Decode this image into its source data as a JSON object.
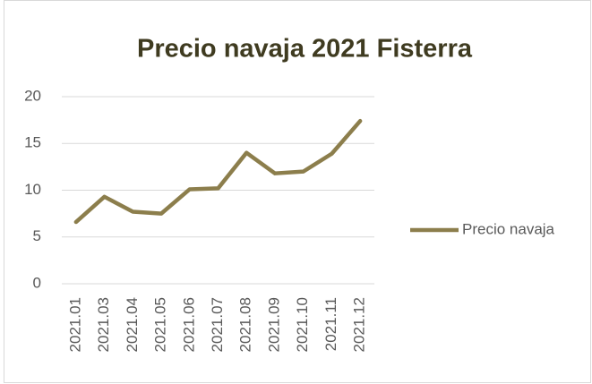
{
  "chart_data": {
    "type": "line",
    "title": "Precio navaja 2021 Fisterra",
    "categories": [
      "2021.01",
      "2021.03",
      "2021.04",
      "2021.05",
      "2021.06",
      "2021.07",
      "2021.08",
      "2021.09",
      "2021.10",
      "2021.11",
      "2021.12"
    ],
    "series": [
      {
        "name": "Precio navaja",
        "color": "#8c7e4c",
        "values": [
          6.6,
          9.3,
          7.7,
          7.5,
          10.1,
          10.2,
          14.0,
          11.8,
          12.0,
          13.9,
          17.4
        ]
      }
    ],
    "ylim": [
      0,
      20
    ],
    "yticks": [
      0,
      5,
      10,
      15,
      20
    ],
    "grid": true,
    "legend": "right"
  }
}
